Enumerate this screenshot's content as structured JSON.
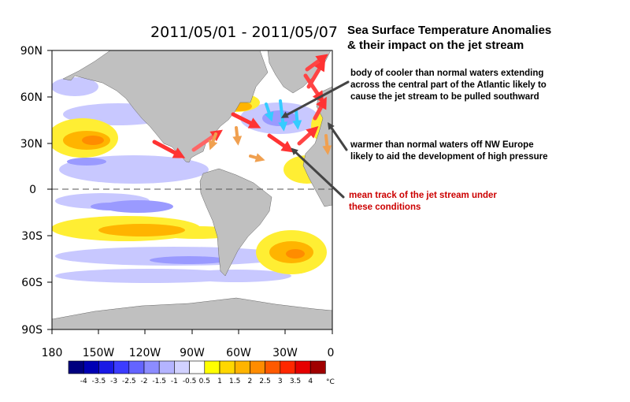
{
  "date_range": "2011/05/01 - 2011/05/07",
  "title_lines": [
    "Sea Surface Temperature Anomalies",
    "& their impact on the jet stream"
  ],
  "map": {
    "lat_labels": [
      "90N",
      "60N",
      "30N",
      "0",
      "30S",
      "60S",
      "90S"
    ],
    "lon_labels": [
      "180",
      "150W",
      "120W",
      "90W",
      "60W",
      "30W",
      "0"
    ]
  },
  "annotations": {
    "cool_water": [
      "body of cooler than normal waters extending",
      "across the central part of the Atlantic likely to",
      "cause the jet stream to be pulled southward"
    ],
    "warm_water": [
      "warmer than normal waters off NW Europe",
      "likely to aid the development of high pressure"
    ],
    "jet_track": [
      "mean track of the jet stream under",
      "these conditions"
    ]
  },
  "legend": {
    "unit": "°C",
    "labels": [
      "-4",
      "-3.5",
      "-3",
      "-2.5",
      "-2",
      "-1.5",
      "-1",
      "-0.5",
      "0.5",
      "1",
      "1.5",
      "2",
      "2.5",
      "3",
      "3.5",
      "4"
    ],
    "colors": [
      "#00007f",
      "#0000b4",
      "#1a1ae6",
      "#3c3cff",
      "#6464ff",
      "#8c8cff",
      "#b4b4ff",
      "#d2d2ff",
      "#ffffff",
      "#ffff00",
      "#ffd700",
      "#ffb400",
      "#ff8c00",
      "#ff5a00",
      "#ff2800",
      "#e60000",
      "#a00000"
    ]
  },
  "colors": {
    "land": "#c0c0c0",
    "jet_arrow": "#ff3333",
    "cool_arrow": "#33ccff",
    "pointer": "#444444"
  }
}
